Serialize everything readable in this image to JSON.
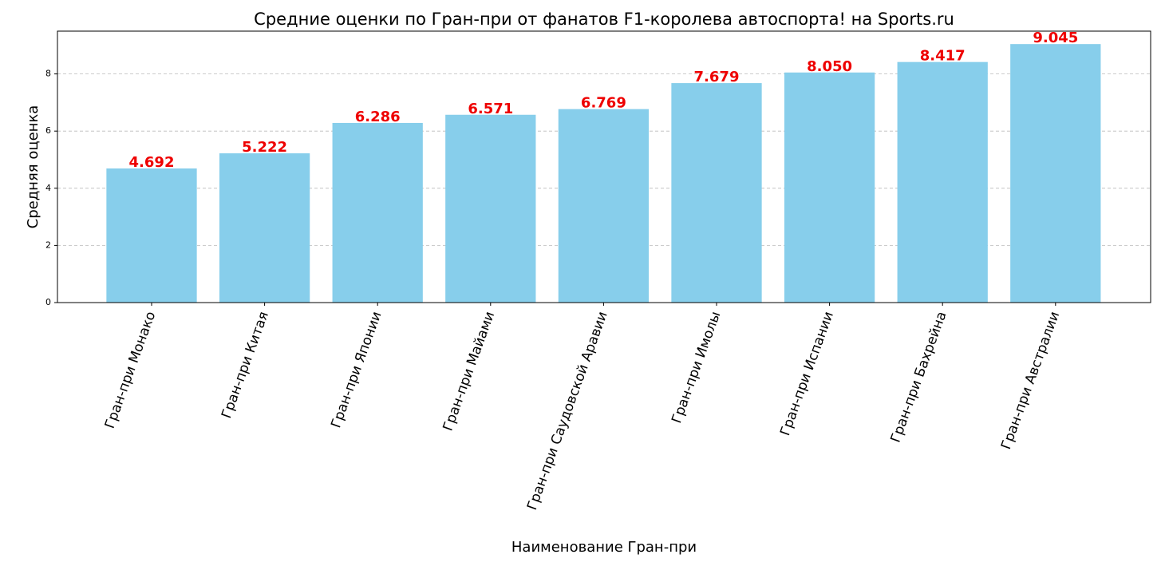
{
  "chart_data": {
    "type": "bar",
    "title": "Средние оценки по Гран-при от фанатов F1-королева автоспорта! на Sports.ru",
    "xlabel": "Наименование Гран-при",
    "ylabel": "Средняя оценка",
    "categories": [
      "Гран-при Монако",
      "Гран-при  Китая",
      "Гран-при  Японии",
      "Гран-при  Майами",
      "Гран-при  Саудовской  Аравии",
      "Гран-при  Имолы",
      "Гран-при  Испании",
      "Гран-при  Бахрейна",
      "Гран-при  Австралии"
    ],
    "values": [
      4.692,
      5.222,
      6.286,
      6.571,
      6.769,
      7.679,
      8.05,
      8.417,
      9.045
    ],
    "value_labels": [
      "4.692",
      "5.222",
      "6.286",
      "6.571",
      "6.769",
      "7.679",
      "8.050",
      "8.417",
      "9.045"
    ],
    "color": "#87ceeb",
    "label_color": "#ee0000",
    "ylim": [
      0,
      9.497
    ],
    "yticks": [
      0,
      2,
      4,
      6,
      8
    ],
    "grid": true
  }
}
